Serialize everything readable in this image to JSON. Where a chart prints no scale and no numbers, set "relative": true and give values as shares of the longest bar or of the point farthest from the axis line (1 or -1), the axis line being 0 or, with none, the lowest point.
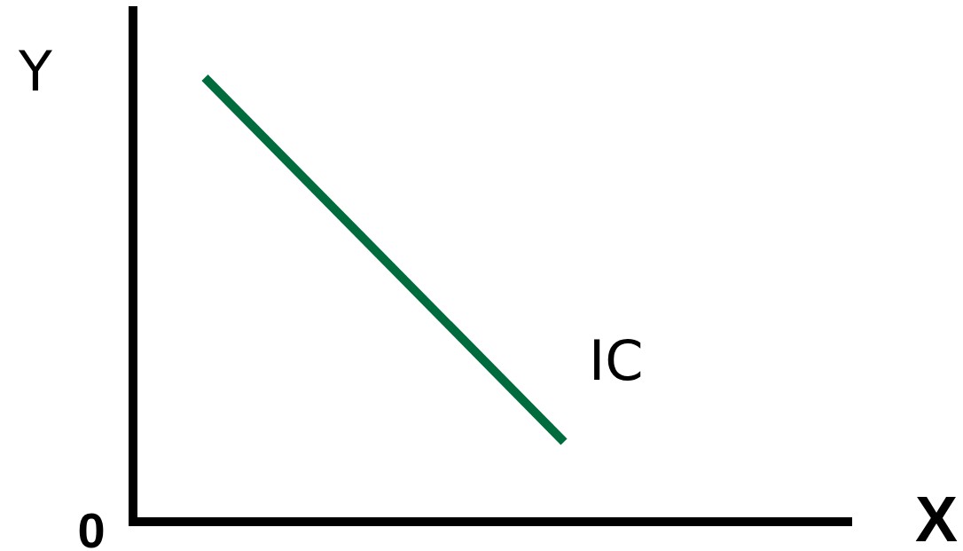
{
  "chart_data": {
    "type": "line",
    "relative": true,
    "xlabel": "X",
    "ylabel": "Y",
    "categories": [
      null,
      null,
      null,
      null,
      null,
      null,
      null,
      null,
      null,
      null,
      null,
      null,
      null,
      null,
      null,
      null,
      null,
      null,
      null,
      null,
      null
    ],
    "series": [
      {
        "name": "IC",
        "color": "#006b3c",
        "values": [
          null,
          null,
          1,
          null,
          null,
          null,
          null,
          null,
          null,
          null,
          null,
          null,
          0.18,
          null,
          null,
          null,
          null,
          null,
          null,
          null,
          null
        ]
      }
    ],
    "annotations": [
      "0"
    ],
    "marker": "none",
    "line_style": "solid"
  }
}
